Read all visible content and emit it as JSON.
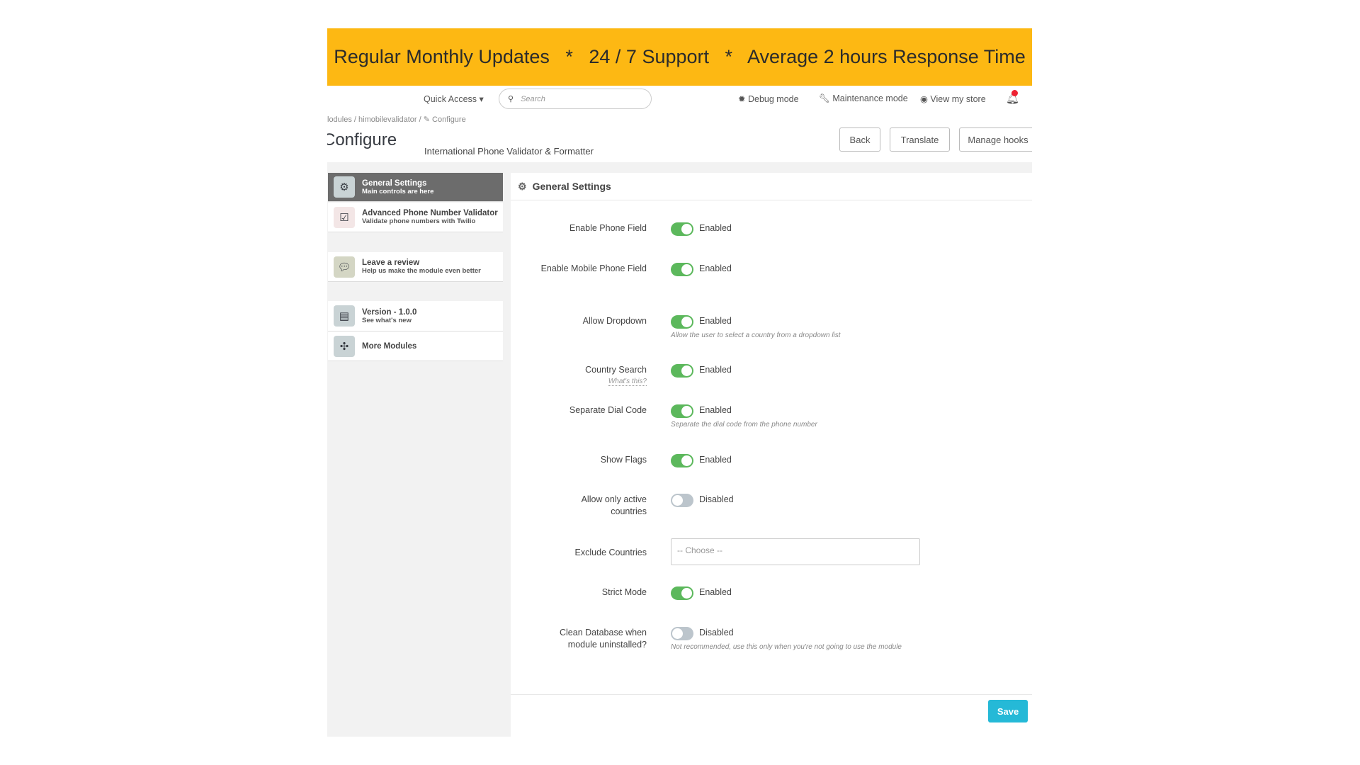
{
  "banner": {
    "text": "Regular Monthly Updates   *   24 / 7 Support   *   Average 2 hours Response Time",
    "color": "#fdb813"
  },
  "topbar": {
    "quick_access": "Quick Access ▾",
    "search_placeholder": "Search",
    "debug": "Debug mode",
    "maintenance": "Maintenance mode",
    "view_store": "View my store"
  },
  "breadcrumb": "lodules  /  himobilevalidator  /  ✎ Configure",
  "page": {
    "title": "Configure",
    "subtitle": "International Phone Validator & Formatter",
    "back": "Back",
    "translate": "Translate",
    "manage_hooks": "Manage hooks"
  },
  "sidebar": {
    "items": [
      {
        "title": "General Settings",
        "sub": "Main controls are here",
        "active": true
      },
      {
        "title": "Advanced Phone Number Validator",
        "sub": "Validate phone numbers with Twilio"
      },
      {
        "title": "Leave a review",
        "sub": "Help us make the module even better"
      },
      {
        "title": "Version - 1.0.0",
        "sub": "See what's new"
      },
      {
        "title": "More Modules",
        "sub": ""
      }
    ]
  },
  "panel": {
    "title": "General Settings",
    "save": "Save",
    "accent": "#25b9d7",
    "fields": [
      {
        "label": "Enable Phone Field",
        "state": "Enabled",
        "on": true
      },
      {
        "label": "Enable Mobile Phone Field",
        "state": "Enabled",
        "on": true
      },
      {
        "label": "Allow Dropdown",
        "state": "Enabled",
        "on": true,
        "hint": "Allow the user to select a country from a dropdown list"
      },
      {
        "label": "Country Search",
        "state": "Enabled",
        "on": true,
        "help": "What's this?"
      },
      {
        "label": "Separate Dial Code",
        "state": "Enabled",
        "on": true,
        "hint": "Separate the dial code from the phone number"
      },
      {
        "label": "Show Flags",
        "state": "Enabled",
        "on": true
      },
      {
        "label": "Allow only active countries",
        "state": "Disabled",
        "on": false
      },
      {
        "label": "Exclude Countries",
        "placeholder": "-- Choose --"
      },
      {
        "label": "Strict Mode",
        "state": "Enabled",
        "on": true
      },
      {
        "label": "Clean Database when module uninstalled?",
        "state": "Disabled",
        "on": false,
        "hint": "Not recommended, use this only when you're not going to use the module"
      }
    ]
  }
}
